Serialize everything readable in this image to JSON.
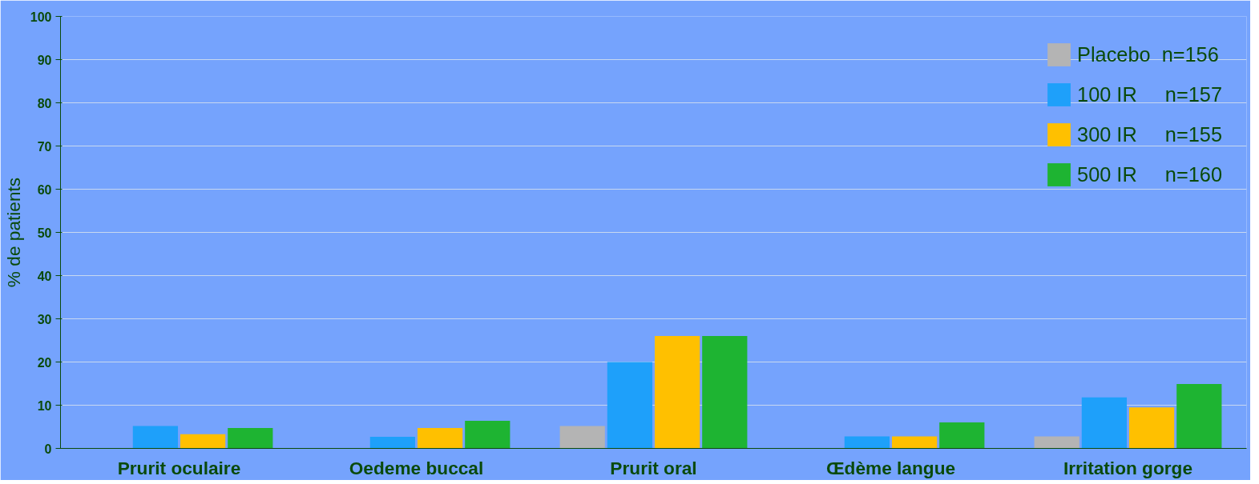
{
  "chart_data": {
    "type": "bar",
    "ylabel": "% de patients",
    "categories": [
      "Prurit oculaire",
      "Oedeme buccal",
      "Prurit oral",
      "Œdème langue",
      "Irritation gorge"
    ],
    "series": [
      {
        "name": "Placebo  n=156",
        "color": "#b4b4b4",
        "values": [
          0,
          0,
          5.2,
          0,
          2.8
        ]
      },
      {
        "name": "100 IR     n=157",
        "color": "#1ea0fa",
        "values": [
          5.2,
          2.7,
          20,
          2.8,
          11.8
        ]
      },
      {
        "name": "300 IR     n=155",
        "color": "#ffc000",
        "values": [
          3.3,
          4.7,
          26,
          2.8,
          9.5
        ]
      },
      {
        "name": "500 IR     n=160",
        "color": "#1eb432",
        "values": [
          4.7,
          6.4,
          26,
          6,
          14.9
        ]
      }
    ],
    "ylim": [
      0,
      100
    ],
    "yticks": [
      0,
      10,
      20,
      30,
      40,
      50,
      60,
      70,
      80,
      90,
      100
    ],
    "grid": "y",
    "legend": "top right"
  }
}
